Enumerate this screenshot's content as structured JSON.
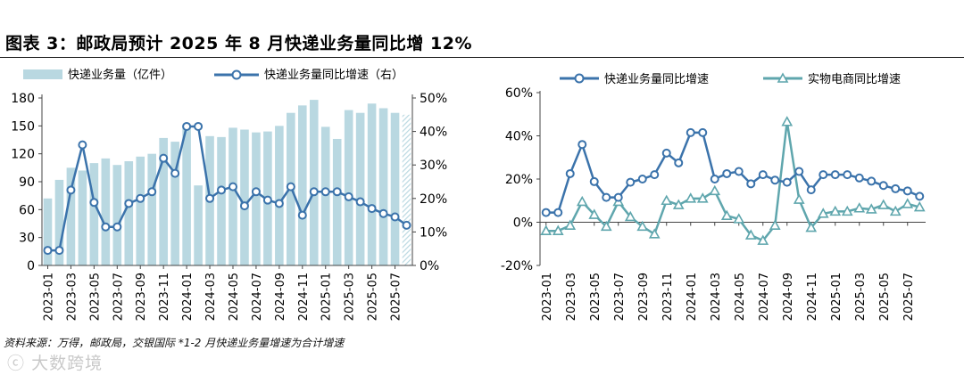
{
  "title": "图表 3：邮政局预计 2025 年 8 月快递业务量同比增 12%",
  "source_note": "资料来源：万得，邮政局，交银国际  *1-2 月快递业务量增速为合计增速",
  "watermark": "大数跨境",
  "colors": {
    "bar": "#b9d8e1",
    "line_main": "#3b73ab",
    "line_ecom": "#5fa6ad"
  },
  "chart_data": [
    {
      "type": "bar+line",
      "legend": [
        "快递业务量（亿件）",
        "快递业务量同比增速（右）"
      ],
      "x_tick_labels": [
        "2023-01",
        "2023-03",
        "2023-05",
        "2023-07",
        "2023-09",
        "2023-11",
        "2024-01",
        "2024-03",
        "2024-05",
        "2024-07",
        "2024-09",
        "2024-11",
        "2025-01",
        "2025-03",
        "2025-05",
        "2025-07"
      ],
      "left_ticks": [
        "0",
        "30",
        "60",
        "90",
        "120",
        "150",
        "180"
      ],
      "right_ticks": [
        "0%",
        "10%",
        "20%",
        "30%",
        "40%",
        "50%"
      ],
      "ylim_left": [
        0,
        180
      ],
      "ylim_right": [
        0,
        0.5
      ],
      "categories": [
        "2023-01",
        "2023-02",
        "2023-03",
        "2023-04",
        "2023-05",
        "2023-06",
        "2023-07",
        "2023-08",
        "2023-09",
        "2023-10",
        "2023-11",
        "2023-12",
        "2024-01",
        "2024-02",
        "2024-03",
        "2024-04",
        "2024-05",
        "2024-06",
        "2024-07",
        "2024-08",
        "2024-09",
        "2024-10",
        "2024-11",
        "2024-12",
        "2025-01",
        "2025-02",
        "2025-03",
        "2025-04",
        "2025-05",
        "2025-06",
        "2025-07",
        "2025-08"
      ],
      "bars": [
        72,
        92,
        105,
        102,
        110,
        115,
        108,
        112,
        117,
        120,
        137,
        133,
        150,
        86,
        139,
        138,
        148,
        146,
        143,
        144,
        150,
        164,
        172,
        178,
        149,
        136,
        167,
        164,
        174,
        169,
        164,
        162
      ],
      "bar_hatched_last": true,
      "line": [
        4.5,
        4.5,
        22.5,
        36,
        18.8,
        11.5,
        11.5,
        18.5,
        20,
        22,
        32,
        27.5,
        41.5,
        41.5,
        20,
        22.5,
        23.5,
        17.8,
        22,
        19.5,
        18.5,
        23.5,
        15,
        22,
        22,
        22,
        20.5,
        19,
        17,
        15.5,
        14.5,
        12
      ]
    },
    {
      "type": "line",
      "legend": [
        "快递业务量同比增速",
        "实物电商同比增速"
      ],
      "x_tick_labels": [
        "2023-01",
        "2023-03",
        "2023-05",
        "2023-07",
        "2023-09",
        "2023-11",
        "2024-01",
        "2024-03",
        "2024-05",
        "2024-07",
        "2024-09",
        "2024-11",
        "2025-01",
        "2025-03",
        "2025-05",
        "2025-07"
      ],
      "y_ticks": [
        "-20%",
        "0%",
        "20%",
        "40%",
        "60%"
      ],
      "ylim": [
        -0.2,
        0.6
      ],
      "categories": [
        "2023-01",
        "2023-02",
        "2023-03",
        "2023-04",
        "2023-05",
        "2023-06",
        "2023-07",
        "2023-08",
        "2023-09",
        "2023-10",
        "2023-11",
        "2023-12",
        "2024-01",
        "2024-02",
        "2024-03",
        "2024-04",
        "2024-05",
        "2024-06",
        "2024-07",
        "2024-08",
        "2024-09",
        "2024-10",
        "2024-11",
        "2024-12",
        "2025-01",
        "2025-02",
        "2025-03",
        "2025-04",
        "2025-05",
        "2025-06",
        "2025-07",
        "2025-08"
      ],
      "series": [
        {
          "name": "快递业务量同比增速",
          "values": [
            4.5,
            4.5,
            22.5,
            36,
            18.8,
            11.5,
            11.5,
            18.5,
            20,
            22,
            32,
            27.5,
            41.5,
            41.5,
            20,
            22.5,
            23.5,
            17.8,
            22,
            19.5,
            18.5,
            23.5,
            15,
            22,
            22,
            22,
            20.5,
            19,
            17,
            15.5,
            14.5,
            12
          ]
        },
        {
          "name": "实物电商同比增速",
          "values": [
            -4,
            -4,
            -1.5,
            9.5,
            3.5,
            -2,
            9.5,
            2.5,
            -2,
            -5.5,
            10,
            8,
            11,
            11,
            14.5,
            3,
            1.5,
            -6,
            -8.5,
            -1.5,
            46.5,
            10.5,
            -2.5,
            4,
            5,
            5,
            6.5,
            6,
            8,
            5,
            8.5,
            7
          ]
        }
      ]
    }
  ]
}
